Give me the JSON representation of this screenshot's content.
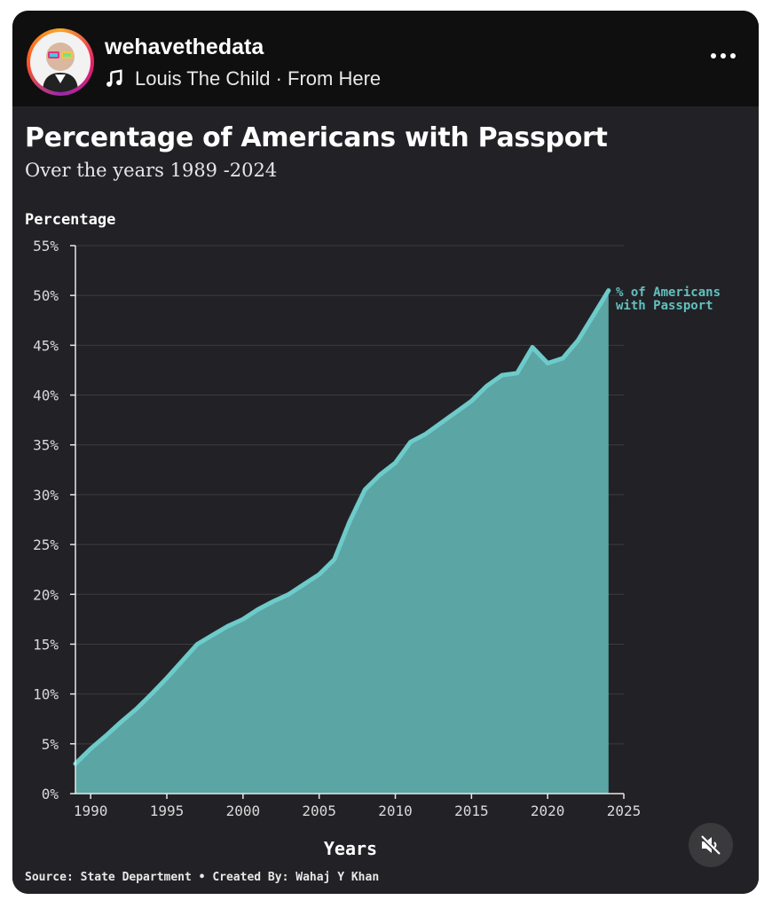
{
  "post": {
    "username": "wehavethedata",
    "music": "Louis The Child · From Here",
    "more_icon": "more-horizontal-icon",
    "mute_icon": "speaker-muted-icon"
  },
  "chart_text": {
    "title": "Percentage of Americans with Passport",
    "subtitle": "Over the years 1989 -2024",
    "ylabel": "Percentage",
    "xlabel": "Years",
    "series_label_line1": "% of Americans",
    "series_label_line2": "with Passport",
    "source": "Source: State Department • Created By: Wahaj Y Khan"
  },
  "colors": {
    "background": "#222226",
    "area_fill": "#5ba5a4",
    "line": "#6dcbca",
    "grid": "#3c3c40"
  },
  "chart_data": {
    "type": "area",
    "title": "Percentage of Americans with Passport",
    "subtitle": "Over the years 1989 -2024",
    "xlabel": "Years",
    "ylabel": "Percentage",
    "xlim": [
      1989,
      2025
    ],
    "ylim": [
      0,
      55
    ],
    "x_ticks": [
      1990,
      1995,
      2000,
      2005,
      2010,
      2015,
      2020,
      2025
    ],
    "y_ticks": [
      0,
      5,
      10,
      15,
      20,
      25,
      30,
      35,
      40,
      45,
      50,
      55
    ],
    "y_tick_labels": [
      "0%",
      "5%",
      "10%",
      "15%",
      "20%",
      "25%",
      "30%",
      "35%",
      "40%",
      "45%",
      "50%",
      "55%"
    ],
    "grid": "horizontal",
    "series": [
      {
        "name": "% of Americans with Passport",
        "x": [
          1989,
          1990,
          1991,
          1992,
          1993,
          1994,
          1995,
          1996,
          1997,
          1998,
          1999,
          2000,
          2001,
          2002,
          2003,
          2004,
          2005,
          2006,
          2007,
          2008,
          2009,
          2010,
          2011,
          2012,
          2013,
          2014,
          2015,
          2016,
          2017,
          2018,
          2019,
          2020,
          2021,
          2022,
          2023,
          2024
        ],
        "y": [
          3,
          4.5,
          5.8,
          7.2,
          8.5,
          10,
          11.6,
          13.3,
          15,
          15.9,
          16.8,
          17.5,
          18.5,
          19.3,
          20,
          21,
          22,
          23.5,
          27.3,
          30.5,
          32,
          33.2,
          35.3,
          36.1,
          37.2,
          38.3,
          39.4,
          40.9,
          42,
          42.2,
          44.8,
          43.2,
          43.7,
          45.5,
          48,
          50.5
        ]
      }
    ]
  }
}
